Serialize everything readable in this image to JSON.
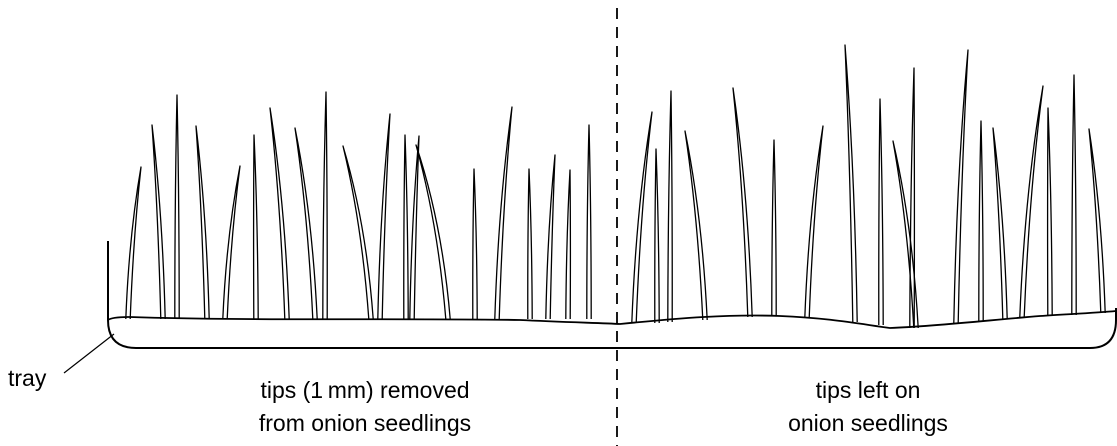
{
  "labels": {
    "tray": "tray",
    "left_line1": "tips (1 mm) removed",
    "left_line2": "from onion seedlings",
    "right_line1": "tips left on",
    "right_line2": "onion seedlings"
  },
  "colors": {
    "ink": "#000000",
    "background": "#ffffff"
  }
}
